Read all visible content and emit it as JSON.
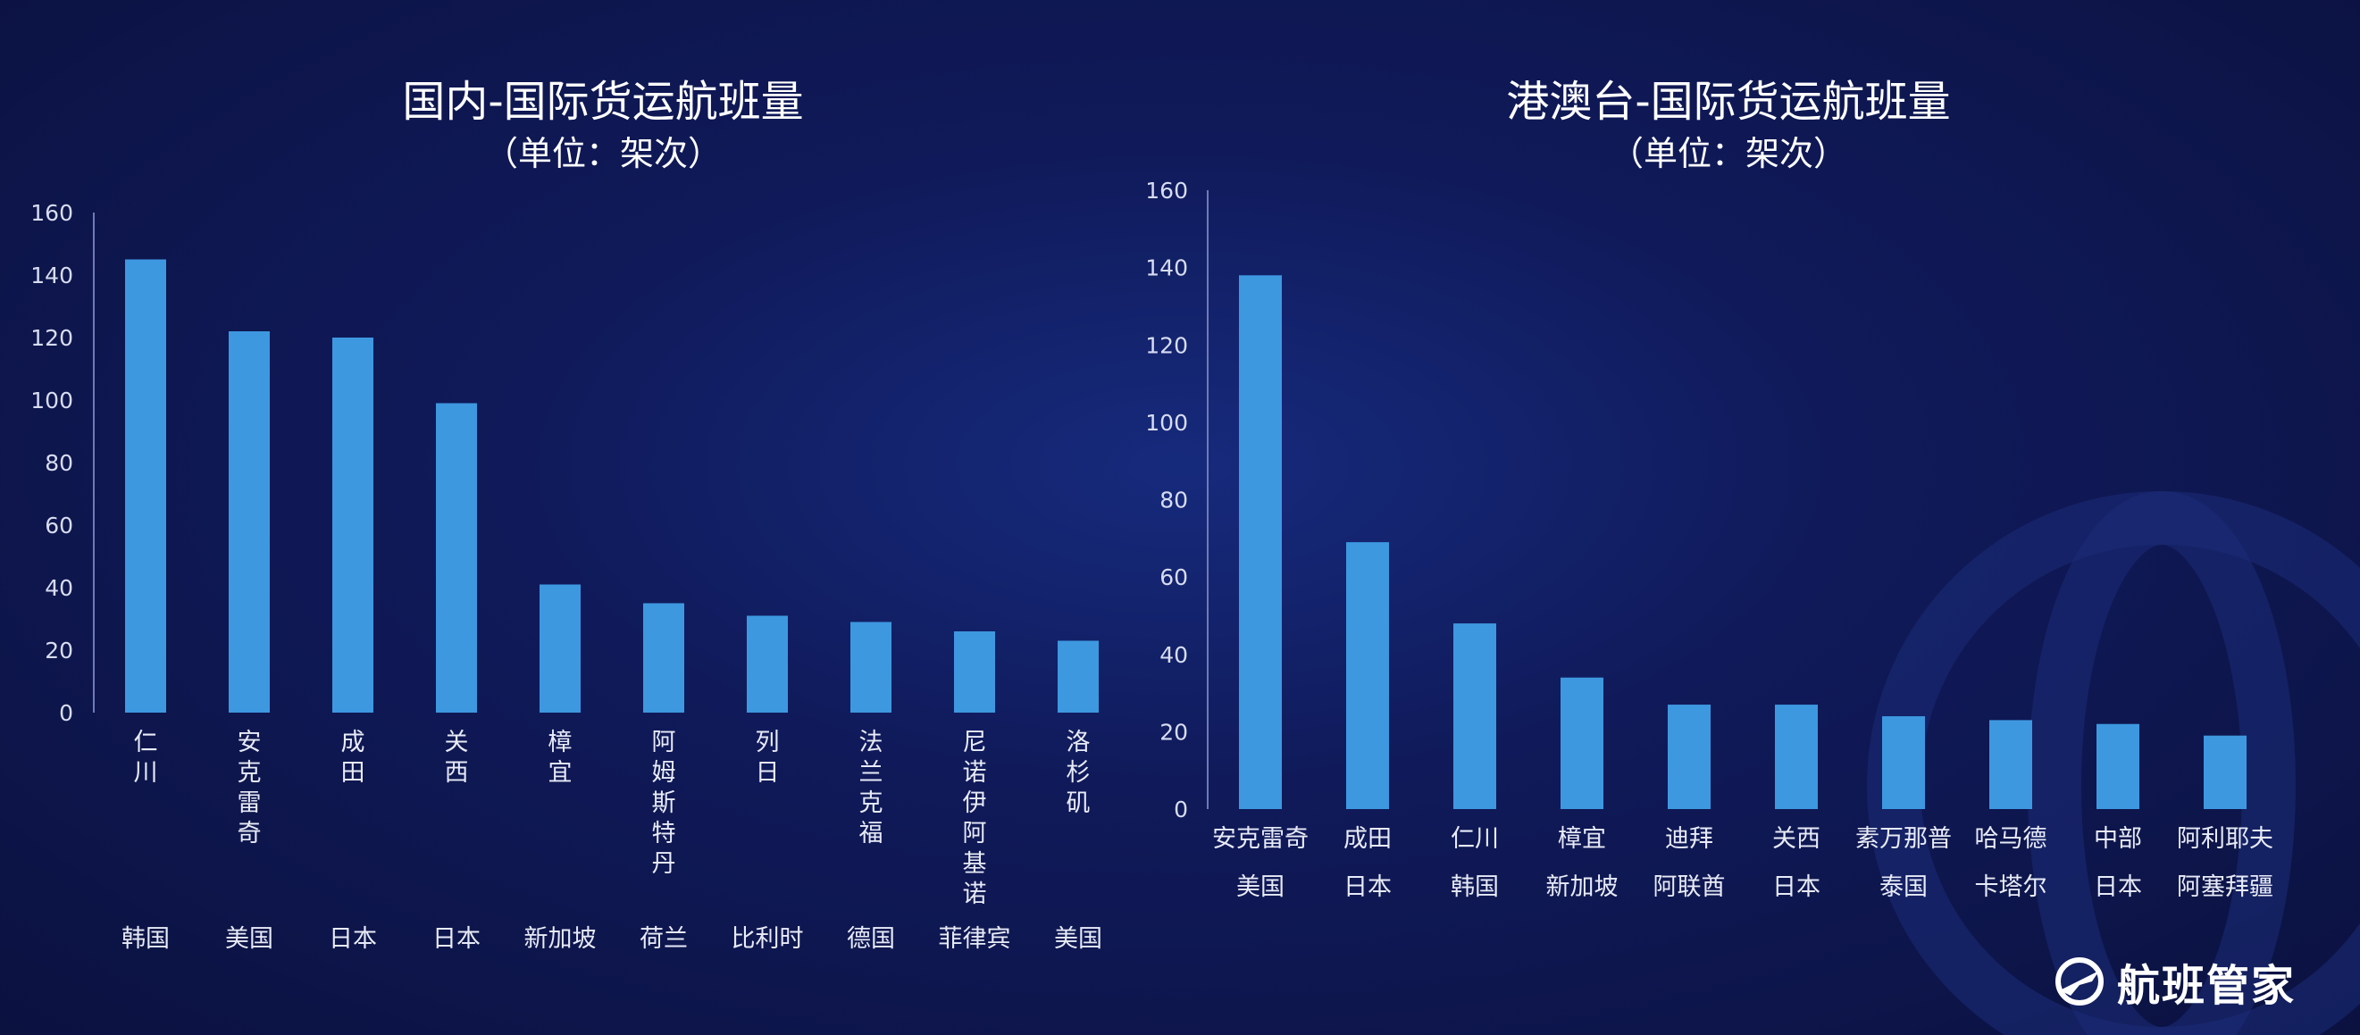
{
  "brand": {
    "name": "航班管家",
    "logo_icon": "airplane-globe-icon"
  },
  "colors": {
    "bar": "#3d98e0",
    "background": "#101a5a"
  },
  "chart_data": [
    {
      "type": "bar",
      "title": "国内-国际货运航班量",
      "subtitle": "（单位：架次）",
      "xlabel": "",
      "ylabel": "",
      "ylim": [
        0,
        160
      ],
      "yticks": [
        0,
        20,
        40,
        60,
        80,
        100,
        120,
        140,
        160
      ],
      "categories": [
        "仁川",
        "安克雷奇",
        "成田",
        "关西",
        "樟宜",
        "阿姆斯特丹",
        "列日",
        "法兰克福",
        "尼诺伊阿基诺",
        "洛杉矶"
      ],
      "countries": [
        "韩国",
        "美国",
        "日本",
        "日本",
        "新加坡",
        "荷兰",
        "比利时",
        "德国",
        "菲律宾",
        "美国"
      ],
      "values": [
        145,
        122,
        120,
        99,
        41,
        35,
        31,
        29,
        26,
        23
      ],
      "category_orientation": "vertical",
      "grid": false,
      "legend": "none"
    },
    {
      "type": "bar",
      "title": "港澳台-国际货运航班量",
      "subtitle": "（单位：架次）",
      "xlabel": "",
      "ylabel": "",
      "ylim": [
        0,
        160
      ],
      "yticks": [
        0,
        20,
        40,
        60,
        80,
        100,
        120,
        140,
        160
      ],
      "categories": [
        "安克雷奇",
        "成田",
        "仁川",
        "樟宜",
        "迪拜",
        "关西",
        "素万那普",
        "哈马德",
        "中部",
        "阿利耶夫"
      ],
      "countries": [
        "美国",
        "日本",
        "韩国",
        "新加坡",
        "阿联酋",
        "日本",
        "泰国",
        "卡塔尔",
        "日本",
        "阿塞拜疆"
      ],
      "values": [
        138,
        69,
        48,
        34,
        27,
        27,
        24,
        23,
        22,
        19
      ],
      "category_orientation": "horizontal",
      "grid": false,
      "legend": "none"
    }
  ]
}
